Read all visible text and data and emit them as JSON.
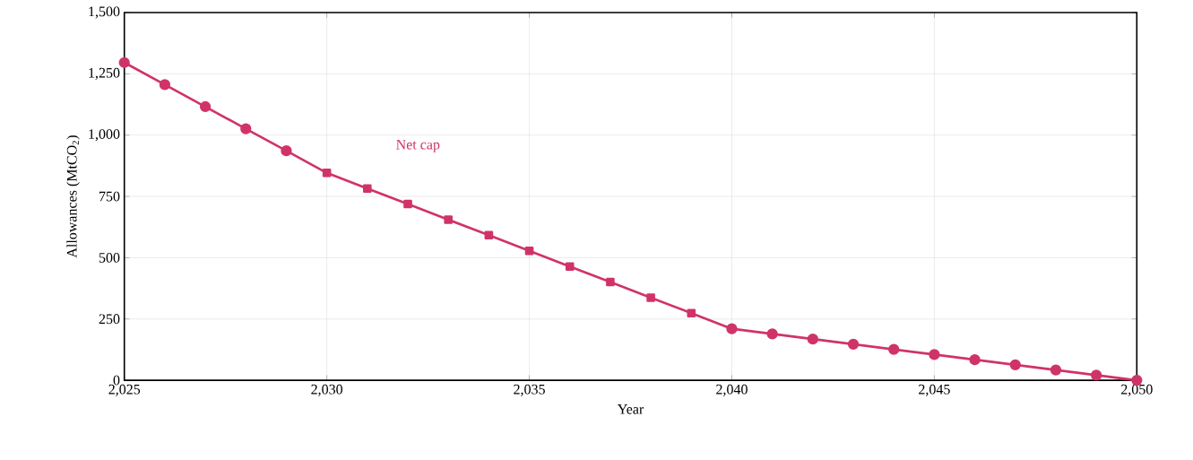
{
  "chart_data": {
    "type": "line",
    "xlabel": "Year",
    "ylabel": "Allowances (MtCO$_{2}$)",
    "series": [
      {
        "color": "#d0336a",
        "marker": "none",
        "x": [
          2025,
          2026,
          2027,
          2028,
          2029,
          2030,
          2031,
          2032,
          2033,
          2034,
          2035,
          2036,
          2037,
          2038,
          2039,
          2040,
          2041,
          2042,
          2043,
          2044,
          2045,
          2046,
          2047,
          2048,
          2049,
          2050
        ],
        "values": [
          1296,
          1206,
          1116,
          1026,
          936,
          846,
          782,
          719,
          655,
          592,
          528,
          464,
          401,
          337,
          274,
          210,
          189,
          168,
          147,
          126,
          105,
          84,
          63,
          42,
          21,
          0
        ]
      },
      {
        "type": "scatter",
        "color": "#d0336a",
        "marker": "circle",
        "x": [
          2025,
          2026,
          2027,
          2028,
          2029
        ],
        "values": [
          1296,
          1206,
          1116,
          1026,
          936
        ]
      },
      {
        "type": "scatter",
        "color": "#d0336a",
        "marker": "square",
        "x": [
          2030,
          2031,
          2032,
          2033,
          2034,
          2035,
          2036,
          2037,
          2038,
          2039
        ],
        "values": [
          846,
          782,
          719,
          655,
          592,
          528,
          464,
          401,
          337,
          274
        ]
      },
      {
        "type": "scatter",
        "color": "#d0336a",
        "marker": "circle",
        "x": [
          2040,
          2041,
          2042,
          2043,
          2044,
          2045,
          2046,
          2047,
          2048,
          2049,
          2050
        ],
        "values": [
          210,
          189,
          168,
          147,
          126,
          105,
          84,
          63,
          42,
          21,
          0
        ]
      }
    ],
    "xlim": [
      2025,
      2050
    ],
    "ylim": [
      0,
      1500
    ],
    "xticks": [
      {
        "value": 2025,
        "label": "2,025"
      },
      {
        "value": 2030,
        "label": "2,030"
      },
      {
        "value": 2035,
        "label": "2,035"
      },
      {
        "value": 2040,
        "label": "2,040"
      },
      {
        "value": 2045,
        "label": "2,045"
      },
      {
        "value": 2050,
        "label": "2,050"
      }
    ],
    "yticks": [
      0,
      250,
      500,
      750,
      {
        "value": 1000,
        "label": "1,000"
      },
      {
        "value": 1250,
        "label": "1,250"
      },
      {
        "value": 1500,
        "label": "1,500"
      }
    ],
    "grid": true,
    "line_style": "solid",
    "annotations": [
      "Net cap"
    ]
  }
}
